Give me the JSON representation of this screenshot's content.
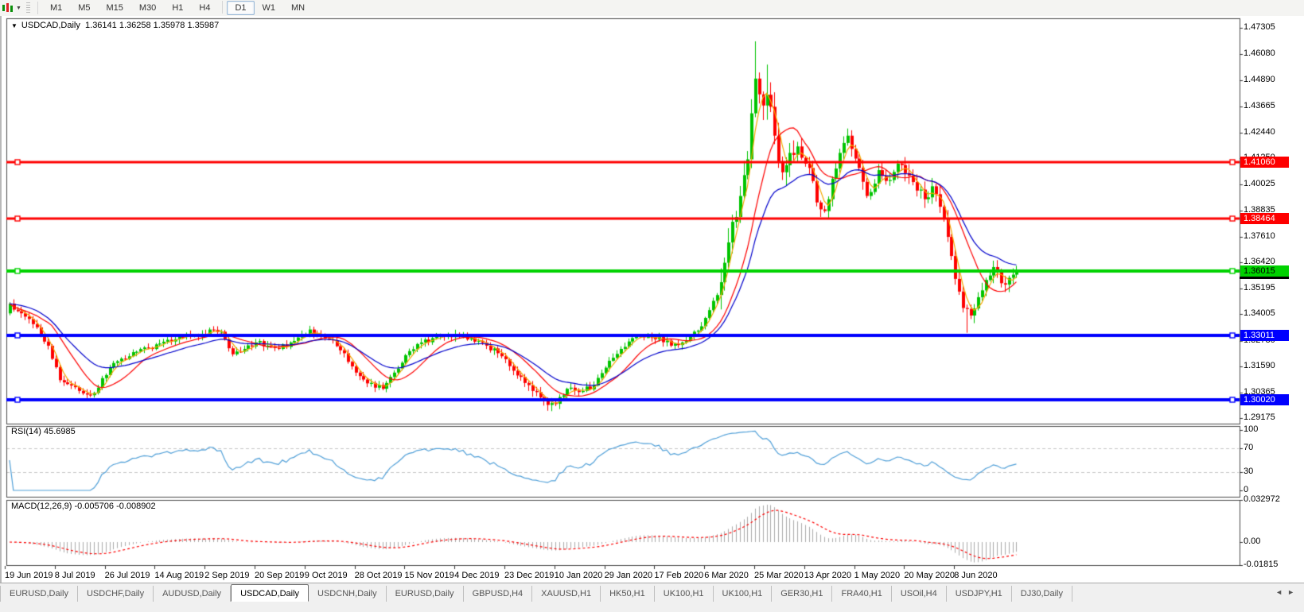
{
  "toolbar": {
    "chart_type_icon": "candlestick-chart-icon",
    "dropdown_caret": "▼",
    "timeframes": [
      "M1",
      "M5",
      "M15",
      "M30",
      "H1",
      "H4",
      "D1",
      "W1",
      "MN"
    ],
    "active_timeframe": "D1"
  },
  "chart_window": {
    "title": {
      "caret": "▼",
      "symbol": "USDCAD,Daily",
      "ohlc_text": "1.36141 1.36258 1.35978 1.35987"
    },
    "rsi_label": "RSI(14) 45.6985",
    "macd_label": "MACD(12,26,9) -0.005706 -0.008902"
  },
  "chart_data": [
    {
      "type": "candlestick",
      "symbol": "USDCAD",
      "timeframe": "Daily",
      "ohlc_display": {
        "open": 1.36141,
        "high": 1.36258,
        "low": 1.35978,
        "close": 1.35987
      },
      "background": "#ffffff",
      "grid": false,
      "up_color": "#00c400",
      "down_color": "#fe0000",
      "ylim": [
        1.289,
        1.4775
      ],
      "y_ticks": [
        "1.47305",
        "1.46080",
        "1.44890",
        "1.43665",
        "1.42440",
        "1.41250",
        "1.40025",
        "1.38835",
        "1.37610",
        "1.36420",
        "1.35195",
        "1.34005",
        "1.32780",
        "1.31590",
        "1.30365",
        "1.29175"
      ],
      "x_tick_labels": [
        "19 Jun 2019",
        "8 Jul 2019",
        "26 Jul 2019",
        "14 Aug 2019",
        "2 Sep 2019",
        "20 Sep 2019",
        "9 Oct 2019",
        "28 Oct 2019",
        "15 Nov 2019",
        "4 Dec 2019",
        "23 Dec 2019",
        "10 Jan 2020",
        "29 Jan 2020",
        "17 Feb 2020",
        "6 Mar 2020",
        "25 Mar 2020",
        "13 Apr 2020",
        "1 May 2020",
        "20 May 2020",
        "8 Jun 2020"
      ],
      "bars_per_x_tick": 13,
      "num_bars": 263,
      "price_path_anchors": [
        [
          0,
          1.345
        ],
        [
          2,
          1.3415
        ],
        [
          4,
          1.339
        ],
        [
          6,
          1.3355
        ],
        [
          8,
          1.33
        ],
        [
          10,
          1.3255
        ],
        [
          13,
          1.3095
        ],
        [
          16,
          1.307
        ],
        [
          18,
          1.3045
        ],
        [
          21,
          1.3025
        ],
        [
          23,
          1.306
        ],
        [
          26,
          1.3155
        ],
        [
          29,
          1.3195
        ],
        [
          32,
          1.3225
        ],
        [
          36,
          1.3245
        ],
        [
          39,
          1.3265
        ],
        [
          43,
          1.3285
        ],
        [
          47,
          1.33
        ],
        [
          50,
          1.331
        ],
        [
          52,
          1.333
        ],
        [
          55,
          1.332
        ],
        [
          58,
          1.3215
        ],
        [
          61,
          1.324
        ],
        [
          64,
          1.327
        ],
        [
          67,
          1.3255
        ],
        [
          70,
          1.324
        ],
        [
          73,
          1.327
        ],
        [
          76,
          1.3305
        ],
        [
          78,
          1.333
        ],
        [
          81,
          1.33
        ],
        [
          84,
          1.328
        ],
        [
          87,
          1.322
        ],
        [
          90,
          1.313
        ],
        [
          93,
          1.308
        ],
        [
          97,
          1.3055
        ],
        [
          100,
          1.313
        ],
        [
          104,
          1.323
        ],
        [
          107,
          1.327
        ],
        [
          110,
          1.329
        ],
        [
          114,
          1.33
        ],
        [
          117,
          1.3295
        ],
        [
          120,
          1.329
        ],
        [
          124,
          1.3255
        ],
        [
          127,
          1.322
        ],
        [
          130,
          1.316
        ],
        [
          133,
          1.311
        ],
        [
          136,
          1.3045
        ],
        [
          140,
          1.298
        ],
        [
          142,
          1.2985
        ],
        [
          144,
          1.3025
        ],
        [
          146,
          1.306
        ],
        [
          149,
          1.3045
        ],
        [
          152,
          1.307
        ],
        [
          156,
          1.3185
        ],
        [
          159,
          1.324
        ],
        [
          162,
          1.329
        ],
        [
          165,
          1.3295
        ],
        [
          169,
          1.3295
        ],
        [
          172,
          1.3255
        ],
        [
          175,
          1.327
        ],
        [
          178,
          1.332
        ],
        [
          180,
          1.3345
        ],
        [
          182,
          1.342
        ],
        [
          184,
          1.349
        ],
        [
          186,
          1.364
        ],
        [
          188,
          1.383
        ],
        [
          190,
          1.395
        ],
        [
          192,
          1.412
        ],
        [
          194,
          1.4495
        ],
        [
          196,
          1.437
        ],
        [
          197,
          1.442
        ],
        [
          199,
          1.423
        ],
        [
          201,
          1.406
        ],
        [
          203,
          1.415
        ],
        [
          205,
          1.418
        ],
        [
          208,
          1.408
        ],
        [
          210,
          1.392
        ],
        [
          212,
          1.388
        ],
        [
          214,
          1.403
        ],
        [
          216,
          1.415
        ],
        [
          218,
          1.423
        ],
        [
          221,
          1.408
        ],
        [
          223,
          1.395
        ],
        [
          226,
          1.407
        ],
        [
          228,
          1.402
        ],
        [
          231,
          1.41
        ],
        [
          234,
          1.4045
        ],
        [
          236,
          1.3975
        ],
        [
          238,
          1.3935
        ],
        [
          240,
          1.3995
        ],
        [
          242,
          1.39
        ],
        [
          244,
          1.376
        ],
        [
          246,
          1.3565
        ],
        [
          248,
          1.343
        ],
        [
          250,
          1.3395
        ],
        [
          252,
          1.348
        ],
        [
          254,
          1.356
        ],
        [
          256,
          1.362
        ],
        [
          258,
          1.3545
        ],
        [
          260,
          1.357
        ],
        [
          262,
          1.3599
        ]
      ],
      "wick_extremes": [
        {
          "bar": 194,
          "high": 1.4668
        },
        {
          "bar": 197,
          "high": 1.456
        },
        {
          "bar": 141,
          "low": 1.2951
        },
        {
          "bar": 249,
          "low": 1.3315
        },
        {
          "bar": 21,
          "low": 1.3016
        }
      ],
      "horizontal_lines": [
        {
          "price": 1.4106,
          "label": "1.41060",
          "color": "#fe0000",
          "width": 3,
          "text_color": "#ffffff"
        },
        {
          "price": 1.38464,
          "label": "1.38464",
          "color": "#fe0000",
          "width": 3,
          "text_color": "#ffffff"
        },
        {
          "price": 1.36015,
          "label": "1.36015",
          "color": "#00d200",
          "width": 4,
          "text_color": "#000000"
        },
        {
          "price": 1.33011,
          "label": "1.33011",
          "color": "#0000fe",
          "width": 4,
          "text_color": "#ffffff"
        },
        {
          "price": 1.3002,
          "label": "1.30020",
          "color": "#0000fe",
          "width": 4,
          "text_color": "#ffffff"
        }
      ],
      "moving_averages": [
        {
          "kind": "sma",
          "period": 4,
          "color": "#f5a800"
        },
        {
          "kind": "sma",
          "period": 12,
          "color": "#fe0000"
        },
        {
          "kind": "ema",
          "period": 22,
          "color": "#0000cc"
        }
      ]
    },
    {
      "type": "line",
      "indicator": "RSI",
      "params": "14",
      "current_value": 45.6985,
      "line_color": "#4f9fd8",
      "ylim": [
        0,
        100
      ],
      "y_ticks": [
        "100",
        "70",
        "30",
        "0"
      ],
      "levels": [
        {
          "value": 70,
          "style": "dashed",
          "color": "#c8c8c8"
        },
        {
          "value": 30,
          "style": "dashed",
          "color": "#c8c8c8"
        }
      ]
    },
    {
      "type": "histogram+line",
      "indicator": "MACD",
      "params": "12,26,9",
      "current_values": [
        -0.005706,
        -0.008902
      ],
      "histogram_color": "#aaaaaa",
      "signal_color": "#fe0000",
      "signal_style": "dashed",
      "ylim": [
        -0.01815,
        0.032972
      ],
      "y_ticks": [
        "0.032972",
        "0.00",
        "-0.01815"
      ]
    }
  ],
  "bottom_tabs": {
    "tabs": [
      "EURUSD,Daily",
      "USDCHF,Daily",
      "AUDUSD,Daily",
      "USDCAD,Daily",
      "USDCNH,Daily",
      "EURUSD,Daily",
      "GBPUSD,H4",
      "XAUUSD,H1",
      "HK50,H1",
      "UK100,H1",
      "UK100,H1",
      "GER30,H1",
      "FRA40,H1",
      "USOil,H4",
      "USDJPY,H1",
      "DJ30,Daily"
    ],
    "active_tab_index": 3,
    "scroll_left": "◄",
    "scroll_right": "►"
  }
}
